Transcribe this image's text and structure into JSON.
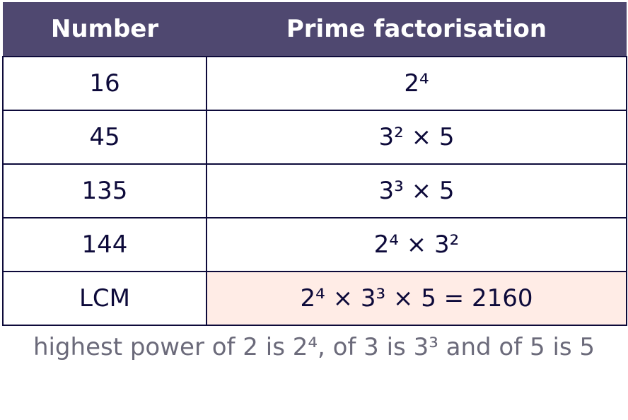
{
  "table": {
    "header": [
      "Number",
      "Prime factorisation"
    ],
    "rows": [
      [
        "16",
        "2⁴"
      ],
      [
        "45",
        "3² × 5"
      ],
      [
        "135",
        "3³ × 5"
      ],
      [
        "144",
        "2⁴ × 3²"
      ],
      [
        "LCM",
        "2⁴ × 3³ × 5 = 2160"
      ]
    ]
  },
  "caption": "highest power of 2 is 2⁴, of 3 is 3³ and of 5 is 5"
}
